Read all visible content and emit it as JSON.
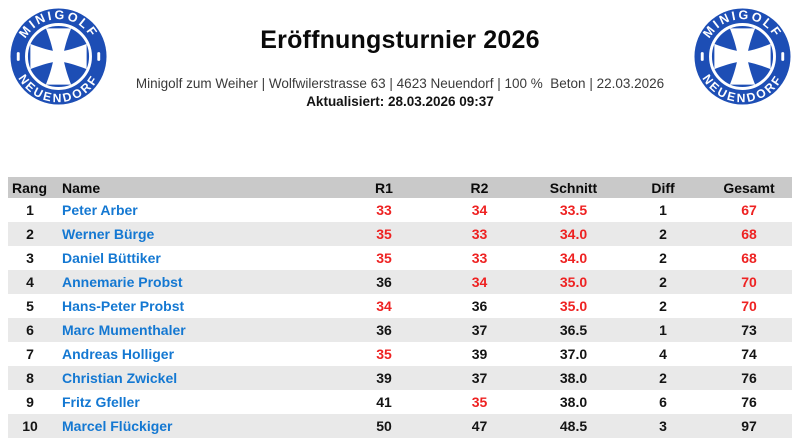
{
  "colors": {
    "logo_blue": "#1d4eb5",
    "accent_blue": "#1478d2",
    "score_red": "#ee2222",
    "header_bg": "#c9c9c9",
    "row_alt_bg": "#e9e9e9"
  },
  "header": {
    "title": "Eröffnungsturnier 2026",
    "subtitle": "Minigolf zum Weiher | Wolfwilerstrasse 63 | 4623 Neuendorf | 100 %  Beton | 22.03.2026",
    "updated": "Aktualisiert: 28.03.2026 09:37",
    "logo": {
      "top_text": "MINIGOLF",
      "bottom_text": "NEUENDORF"
    }
  },
  "table": {
    "columns": [
      "Rang",
      "Name",
      "R1",
      "R2",
      "Schnitt",
      "Diff",
      "Gesamt"
    ],
    "rows": [
      {
        "rank": "1",
        "name": "Peter Arber",
        "cells": [
          {
            "v": "33",
            "red": true
          },
          {
            "v": "34",
            "red": true
          },
          {
            "v": "33.5",
            "red": true
          },
          {
            "v": "1",
            "red": false
          },
          {
            "v": "67",
            "red": true
          }
        ]
      },
      {
        "rank": "2",
        "name": "Werner Bürge",
        "cells": [
          {
            "v": "35",
            "red": true
          },
          {
            "v": "33",
            "red": true
          },
          {
            "v": "34.0",
            "red": true
          },
          {
            "v": "2",
            "red": false
          },
          {
            "v": "68",
            "red": true
          }
        ]
      },
      {
        "rank": "3",
        "name": "Daniel Büttiker",
        "cells": [
          {
            "v": "35",
            "red": true
          },
          {
            "v": "33",
            "red": true
          },
          {
            "v": "34.0",
            "red": true
          },
          {
            "v": "2",
            "red": false
          },
          {
            "v": "68",
            "red": true
          }
        ]
      },
      {
        "rank": "4",
        "name": "Annemarie Probst",
        "cells": [
          {
            "v": "36",
            "red": false
          },
          {
            "v": "34",
            "red": true
          },
          {
            "v": "35.0",
            "red": true
          },
          {
            "v": "2",
            "red": false
          },
          {
            "v": "70",
            "red": true
          }
        ]
      },
      {
        "rank": "5",
        "name": "Hans-Peter Probst",
        "cells": [
          {
            "v": "34",
            "red": true
          },
          {
            "v": "36",
            "red": false
          },
          {
            "v": "35.0",
            "red": true
          },
          {
            "v": "2",
            "red": false
          },
          {
            "v": "70",
            "red": true
          }
        ]
      },
      {
        "rank": "6",
        "name": "Marc Mumenthaler",
        "cells": [
          {
            "v": "36",
            "red": false
          },
          {
            "v": "37",
            "red": false
          },
          {
            "v": "36.5",
            "red": false
          },
          {
            "v": "1",
            "red": false
          },
          {
            "v": "73",
            "red": false
          }
        ]
      },
      {
        "rank": "7",
        "name": "Andreas Holliger",
        "cells": [
          {
            "v": "35",
            "red": true
          },
          {
            "v": "39",
            "red": false
          },
          {
            "v": "37.0",
            "red": false
          },
          {
            "v": "4",
            "red": false
          },
          {
            "v": "74",
            "red": false
          }
        ]
      },
      {
        "rank": "8",
        "name": "Christian Zwickel",
        "cells": [
          {
            "v": "39",
            "red": false
          },
          {
            "v": "37",
            "red": false
          },
          {
            "v": "38.0",
            "red": false
          },
          {
            "v": "2",
            "red": false
          },
          {
            "v": "76",
            "red": false
          }
        ]
      },
      {
        "rank": "9",
        "name": "Fritz Gfeller",
        "cells": [
          {
            "v": "41",
            "red": false
          },
          {
            "v": "35",
            "red": true
          },
          {
            "v": "38.0",
            "red": false
          },
          {
            "v": "6",
            "red": false
          },
          {
            "v": "76",
            "red": false
          }
        ]
      },
      {
        "rank": "10",
        "name": "Marcel Flückiger",
        "cells": [
          {
            "v": "50",
            "red": false
          },
          {
            "v": "47",
            "red": false
          },
          {
            "v": "48.5",
            "red": false
          },
          {
            "v": "3",
            "red": false
          },
          {
            "v": "97",
            "red": false
          }
        ]
      }
    ]
  }
}
